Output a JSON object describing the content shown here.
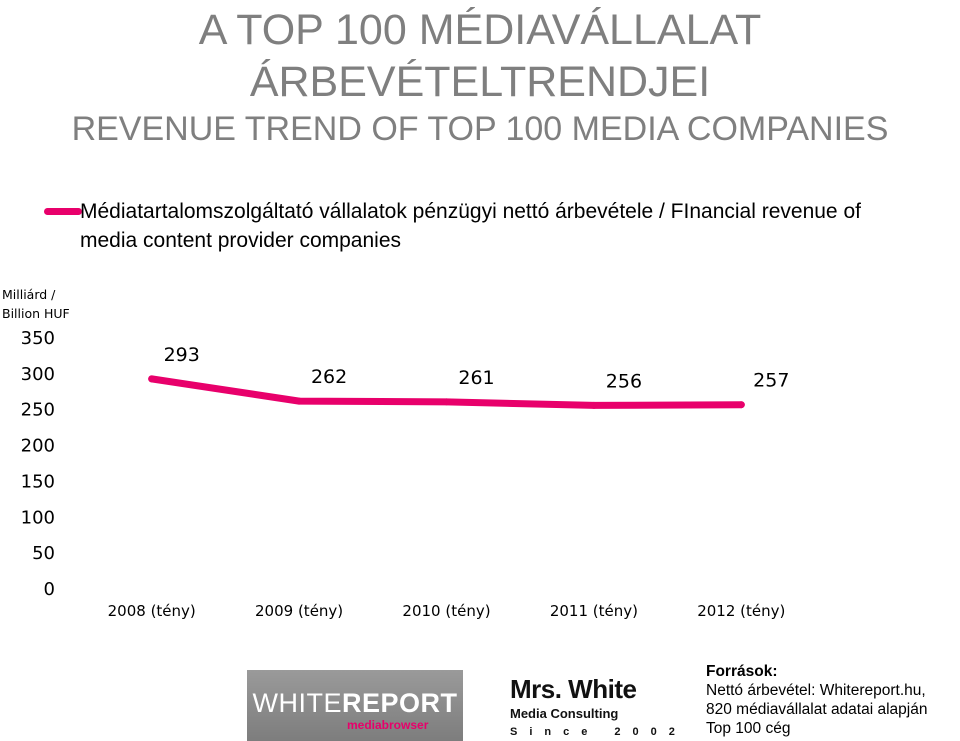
{
  "title_line1": "A TOP 100 MÉDIAVÁLLALAT",
  "title_line2": "ÁRBEVÉTELTRENDJEI",
  "subtitle": "REVENUE TREND OF TOP 100 MEDIA COMPANIES",
  "y_axis_unit_label": "Milliárd / Billion HUF",
  "colors": {
    "series": "#e8006b",
    "title": "#7f7f7f"
  },
  "chart_data": {
    "type": "line",
    "categories": [
      "2008 (tény)",
      "2009 (tény)",
      "2010 (tény)",
      "2011 (tény)",
      "2012 (tény)"
    ],
    "series": [
      {
        "name": "Médiatartalomszolgáltató vállalatok pénzügyi nettó árbevétele / FInancial revenue of media content provider companies",
        "values": [
          293,
          262,
          261,
          256,
          257
        ],
        "data_labels": [
          "293",
          "262",
          "261",
          "256",
          "257"
        ]
      }
    ],
    "ylim": [
      0,
      350
    ],
    "yticks": [
      "0",
      "50",
      "100",
      "150",
      "200",
      "250",
      "300",
      "350"
    ],
    "legend_position": "top",
    "grid": false
  },
  "logos": {
    "whitereport": {
      "main_light": "WHITE",
      "main_bold": "REPORT",
      "sub": "mediabrowser"
    },
    "mrswhite": {
      "name": "Mrs. White",
      "sub": "Media Consulting",
      "since": "Since 2002"
    }
  },
  "sources": {
    "heading": "Források:",
    "line1": "Nettó árbevétel: Whitereport.hu,",
    "line2": "820 médiavállalat adatai alapján",
    "line3": "Top 100 cég"
  }
}
